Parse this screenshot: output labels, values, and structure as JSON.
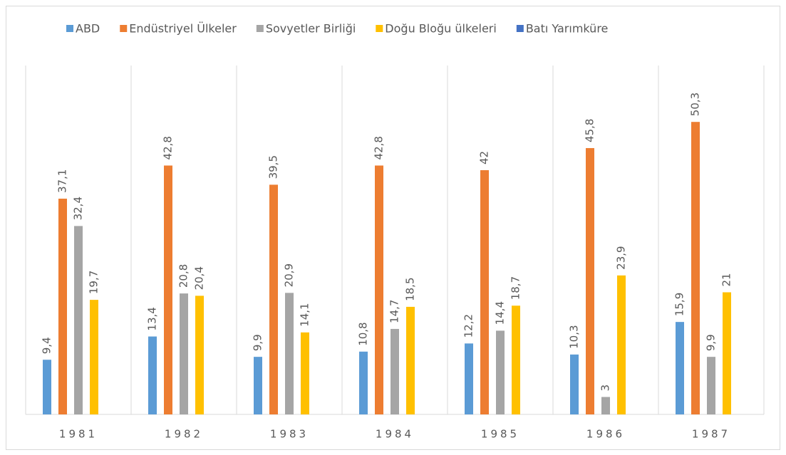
{
  "chart_data": {
    "type": "bar",
    "categories": [
      "1981",
      "1982",
      "1983",
      "1984",
      "1985",
      "1986",
      "1987"
    ],
    "series": [
      {
        "name": "ABD",
        "color": "#5b9bd5",
        "values": [
          9.4,
          13.4,
          9.9,
          10.8,
          12.2,
          10.3,
          15.9
        ],
        "value_labels": [
          "9,4",
          "13,4",
          "9,9",
          "10,8",
          "12,2",
          "10,3",
          "15,9"
        ]
      },
      {
        "name": "Endüstriyel Ülkeler",
        "color": "#ed7d31",
        "values": [
          37.1,
          42.8,
          39.5,
          42.8,
          42,
          45.8,
          50.3
        ],
        "value_labels": [
          "37,1",
          "42,8",
          "39,5",
          "42,8",
          "42",
          "45,8",
          "50,3"
        ]
      },
      {
        "name": "Sovyetler Birliği",
        "color": "#a5a5a5",
        "values": [
          32.4,
          20.8,
          20.9,
          14.7,
          14.4,
          3,
          9.9
        ],
        "value_labels": [
          "32,4",
          "20,8",
          "20,9",
          "14,7",
          "14,4",
          "3",
          "9,9"
        ]
      },
      {
        "name": "Doğu Bloğu ülkeleri",
        "color": "#ffc000",
        "values": [
          19.7,
          20.4,
          14.1,
          18.5,
          18.7,
          23.9,
          21
        ],
        "value_labels": [
          "19,7",
          "20,4",
          "14,1",
          "18,5",
          "18,7",
          "23,9",
          "21"
        ]
      },
      {
        "name": "Batı Yarımküre",
        "color": "#4472c4",
        "values": [
          null,
          null,
          null,
          null,
          null,
          null,
          null
        ]
      }
    ],
    "ylim": [
      0,
      60
    ],
    "legend": "top"
  }
}
